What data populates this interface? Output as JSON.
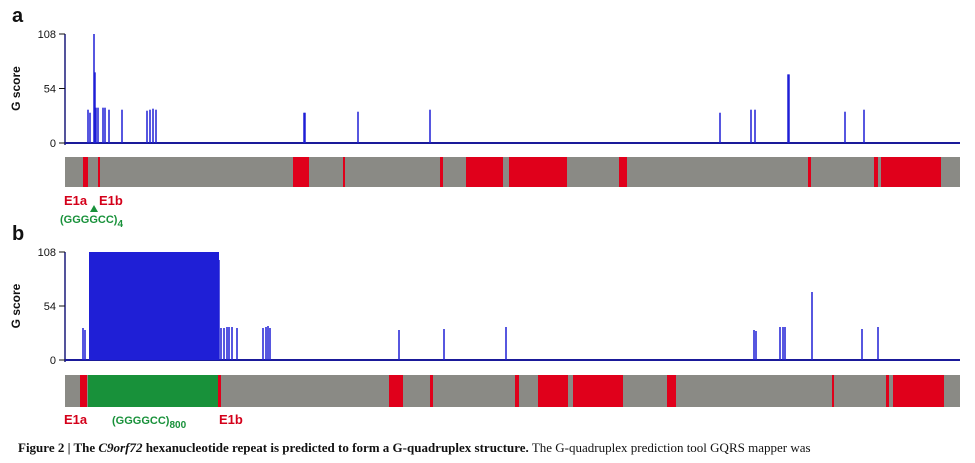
{
  "chart_data": [
    {
      "panel": "a",
      "type": "bar",
      "ylabel": "G score",
      "yticks": [
        0,
        54,
        108
      ],
      "ylim": [
        0,
        108
      ],
      "bar_color": "#1f1fd6",
      "peaks": [
        {
          "x": 88,
          "v": 33
        },
        {
          "x": 90,
          "v": 30
        },
        {
          "x": 94,
          "v": 108
        },
        {
          "x": 95,
          "v": 70
        },
        {
          "x": 96,
          "v": 35
        },
        {
          "x": 98,
          "v": 35
        },
        {
          "x": 103,
          "v": 35
        },
        {
          "x": 105,
          "v": 35
        },
        {
          "x": 109,
          "v": 33
        },
        {
          "x": 122,
          "v": 33
        },
        {
          "x": 147,
          "v": 32
        },
        {
          "x": 150,
          "v": 33
        },
        {
          "x": 153,
          "v": 34
        },
        {
          "x": 156,
          "v": 33
        },
        {
          "x": 304,
          "v": 30
        },
        {
          "x": 305,
          "v": 30
        },
        {
          "x": 358,
          "v": 31
        },
        {
          "x": 430,
          "v": 33
        },
        {
          "x": 720,
          "v": 30
        },
        {
          "x": 751,
          "v": 33
        },
        {
          "x": 755,
          "v": 33
        },
        {
          "x": 788,
          "v": 68
        },
        {
          "x": 789,
          "v": 68
        },
        {
          "x": 845,
          "v": 31
        },
        {
          "x": 864,
          "v": 33
        }
      ],
      "track": {
        "background": "#8a8a85",
        "exon_color": "#e0001b",
        "exons": [
          [
            83,
            88
          ],
          [
            98,
            100
          ],
          [
            293,
            309
          ],
          [
            343,
            345
          ],
          [
            440,
            443
          ],
          [
            466,
            503
          ],
          [
            509,
            567
          ],
          [
            619,
            627
          ],
          [
            808,
            811
          ],
          [
            874,
            878
          ],
          [
            881,
            941
          ]
        ]
      },
      "labels": {
        "panel_letter": "a",
        "e1a": "E1a",
        "e1b": "E1b",
        "repeat": "(GGGGCC)",
        "repeat_sub": "4"
      }
    },
    {
      "panel": "b",
      "type": "bar",
      "ylabel": "G score",
      "yticks": [
        0,
        54,
        108
      ],
      "ylim": [
        0,
        108
      ],
      "bar_color": "#1f1fd6",
      "block": {
        "x_start": 89,
        "x_end": 219,
        "v": 108
      },
      "peaks": [
        {
          "x": 83,
          "v": 32
        },
        {
          "x": 85,
          "v": 30
        },
        {
          "x": 219,
          "v": 100
        },
        {
          "x": 221,
          "v": 32
        },
        {
          "x": 224,
          "v": 32
        },
        {
          "x": 227,
          "v": 33
        },
        {
          "x": 229,
          "v": 33
        },
        {
          "x": 232,
          "v": 33
        },
        {
          "x": 237,
          "v": 32
        },
        {
          "x": 263,
          "v": 32
        },
        {
          "x": 266,
          "v": 33
        },
        {
          "x": 268,
          "v": 34
        },
        {
          "x": 270,
          "v": 32
        },
        {
          "x": 399,
          "v": 30
        },
        {
          "x": 444,
          "v": 31
        },
        {
          "x": 506,
          "v": 33
        },
        {
          "x": 754,
          "v": 30
        },
        {
          "x": 756,
          "v": 29
        },
        {
          "x": 780,
          "v": 33
        },
        {
          "x": 783,
          "v": 33
        },
        {
          "x": 785,
          "v": 33
        },
        {
          "x": 812,
          "v": 68
        },
        {
          "x": 862,
          "v": 31
        },
        {
          "x": 878,
          "v": 33
        }
      ],
      "track": {
        "background": "#8a8a85",
        "exon_color": "#e0001b",
        "repeat_color": "#18913a",
        "repeat_span": [
          88,
          218
        ],
        "exons": [
          [
            80,
            87
          ],
          [
            218,
            221
          ],
          [
            389,
            403
          ],
          [
            430,
            433
          ],
          [
            515,
            519
          ],
          [
            538,
            568
          ],
          [
            573,
            623
          ],
          [
            667,
            676
          ],
          [
            832,
            834
          ],
          [
            886,
            889
          ],
          [
            893,
            944
          ]
        ]
      },
      "labels": {
        "panel_letter": "b",
        "e1a": "E1a",
        "e1b": "E1b",
        "repeat": "(GGGGCC)",
        "repeat_sub": "800"
      }
    }
  ],
  "caption": {
    "part1": "Figure 2 | The ",
    "gene": "C9orf72",
    "part2": " hexanucleotide repeat is predicted to form a G-quadruplex structure.",
    "rest": "  The G-quadruplex prediction tool GQRS mapper was"
  }
}
